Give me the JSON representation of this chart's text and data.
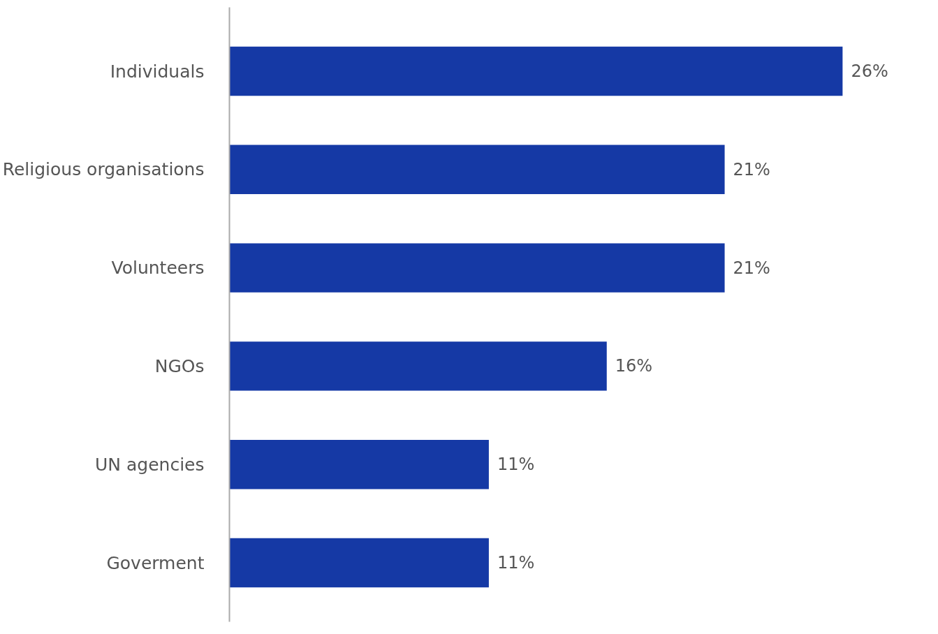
{
  "chart_data": {
    "type": "bar",
    "orientation": "horizontal",
    "categories": [
      "Individuals",
      "Religious organisations",
      "Volunteers",
      "NGOs",
      "UN agencies",
      "Goverment"
    ],
    "values": [
      26,
      21,
      21,
      16,
      11,
      11
    ],
    "value_labels": [
      "26%",
      "21%",
      "21%",
      "16%",
      "11%",
      "11%"
    ],
    "color": "#1539a5",
    "tick_labels": "y"
  }
}
